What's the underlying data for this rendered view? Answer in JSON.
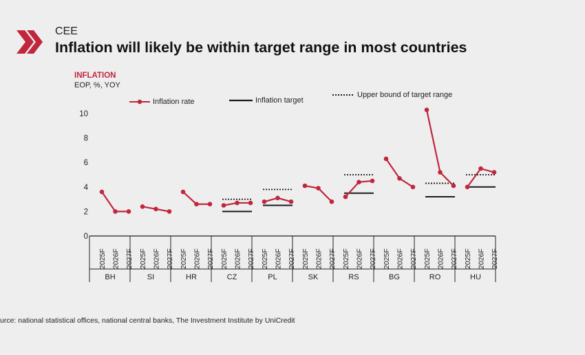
{
  "header": {
    "kicker": "CEE",
    "title": "Inflation will likely be within target range in most countries"
  },
  "colors": {
    "brand": "#c0273d",
    "target": "#1a1a1a",
    "axis": "#222222"
  },
  "icons": {
    "logo": "double-chevron-right-icon"
  },
  "legend": {
    "inflation_rate": "Inflation rate",
    "inflation_target": "Inflation target",
    "upper_bound": "Upper bound of target range"
  },
  "source": "urce: national statistical offices, national central banks, The Investment Institute by UniCredit",
  "chart_data": {
    "type": "line",
    "title": "INFLATION",
    "subtitle": "EOP, %, YOY",
    "ylim": [
      0,
      10
    ],
    "yticks": [
      0,
      2,
      4,
      6,
      8,
      10
    ],
    "period_labels": [
      "2025F",
      "2026F",
      "2027F"
    ],
    "countries": [
      "BH",
      "SI",
      "HR",
      "CZ",
      "PL",
      "SK",
      "RS",
      "BG",
      "RO",
      "HU"
    ],
    "series": [
      {
        "name": "Inflation rate",
        "values": {
          "BH": [
            3.6,
            2.0,
            2.0
          ],
          "SI": [
            2.4,
            2.2,
            2.0
          ],
          "HR": [
            3.6,
            2.6,
            2.6
          ],
          "CZ": [
            2.5,
            2.7,
            2.7
          ],
          "PL": [
            2.8,
            3.1,
            2.8
          ],
          "SK": [
            4.1,
            3.9,
            2.8
          ],
          "RS": [
            3.2,
            4.4,
            4.5
          ],
          "BG": [
            6.3,
            4.7,
            4.0
          ],
          "RO": [
            10.3,
            5.2,
            4.1
          ],
          "HU": [
            4.0,
            5.5,
            5.2
          ]
        }
      },
      {
        "name": "Inflation target",
        "values": {
          "CZ": 2.0,
          "PL": 2.5,
          "RS": 3.5,
          "RO": 3.2,
          "HU": 4.0
        }
      },
      {
        "name": "Upper bound of target range",
        "values": {
          "CZ": 3.0,
          "PL": 3.8,
          "RS": 5.0,
          "RO": 4.3,
          "HU": 5.0
        }
      }
    ],
    "grid": false,
    "legend_position": "top"
  }
}
